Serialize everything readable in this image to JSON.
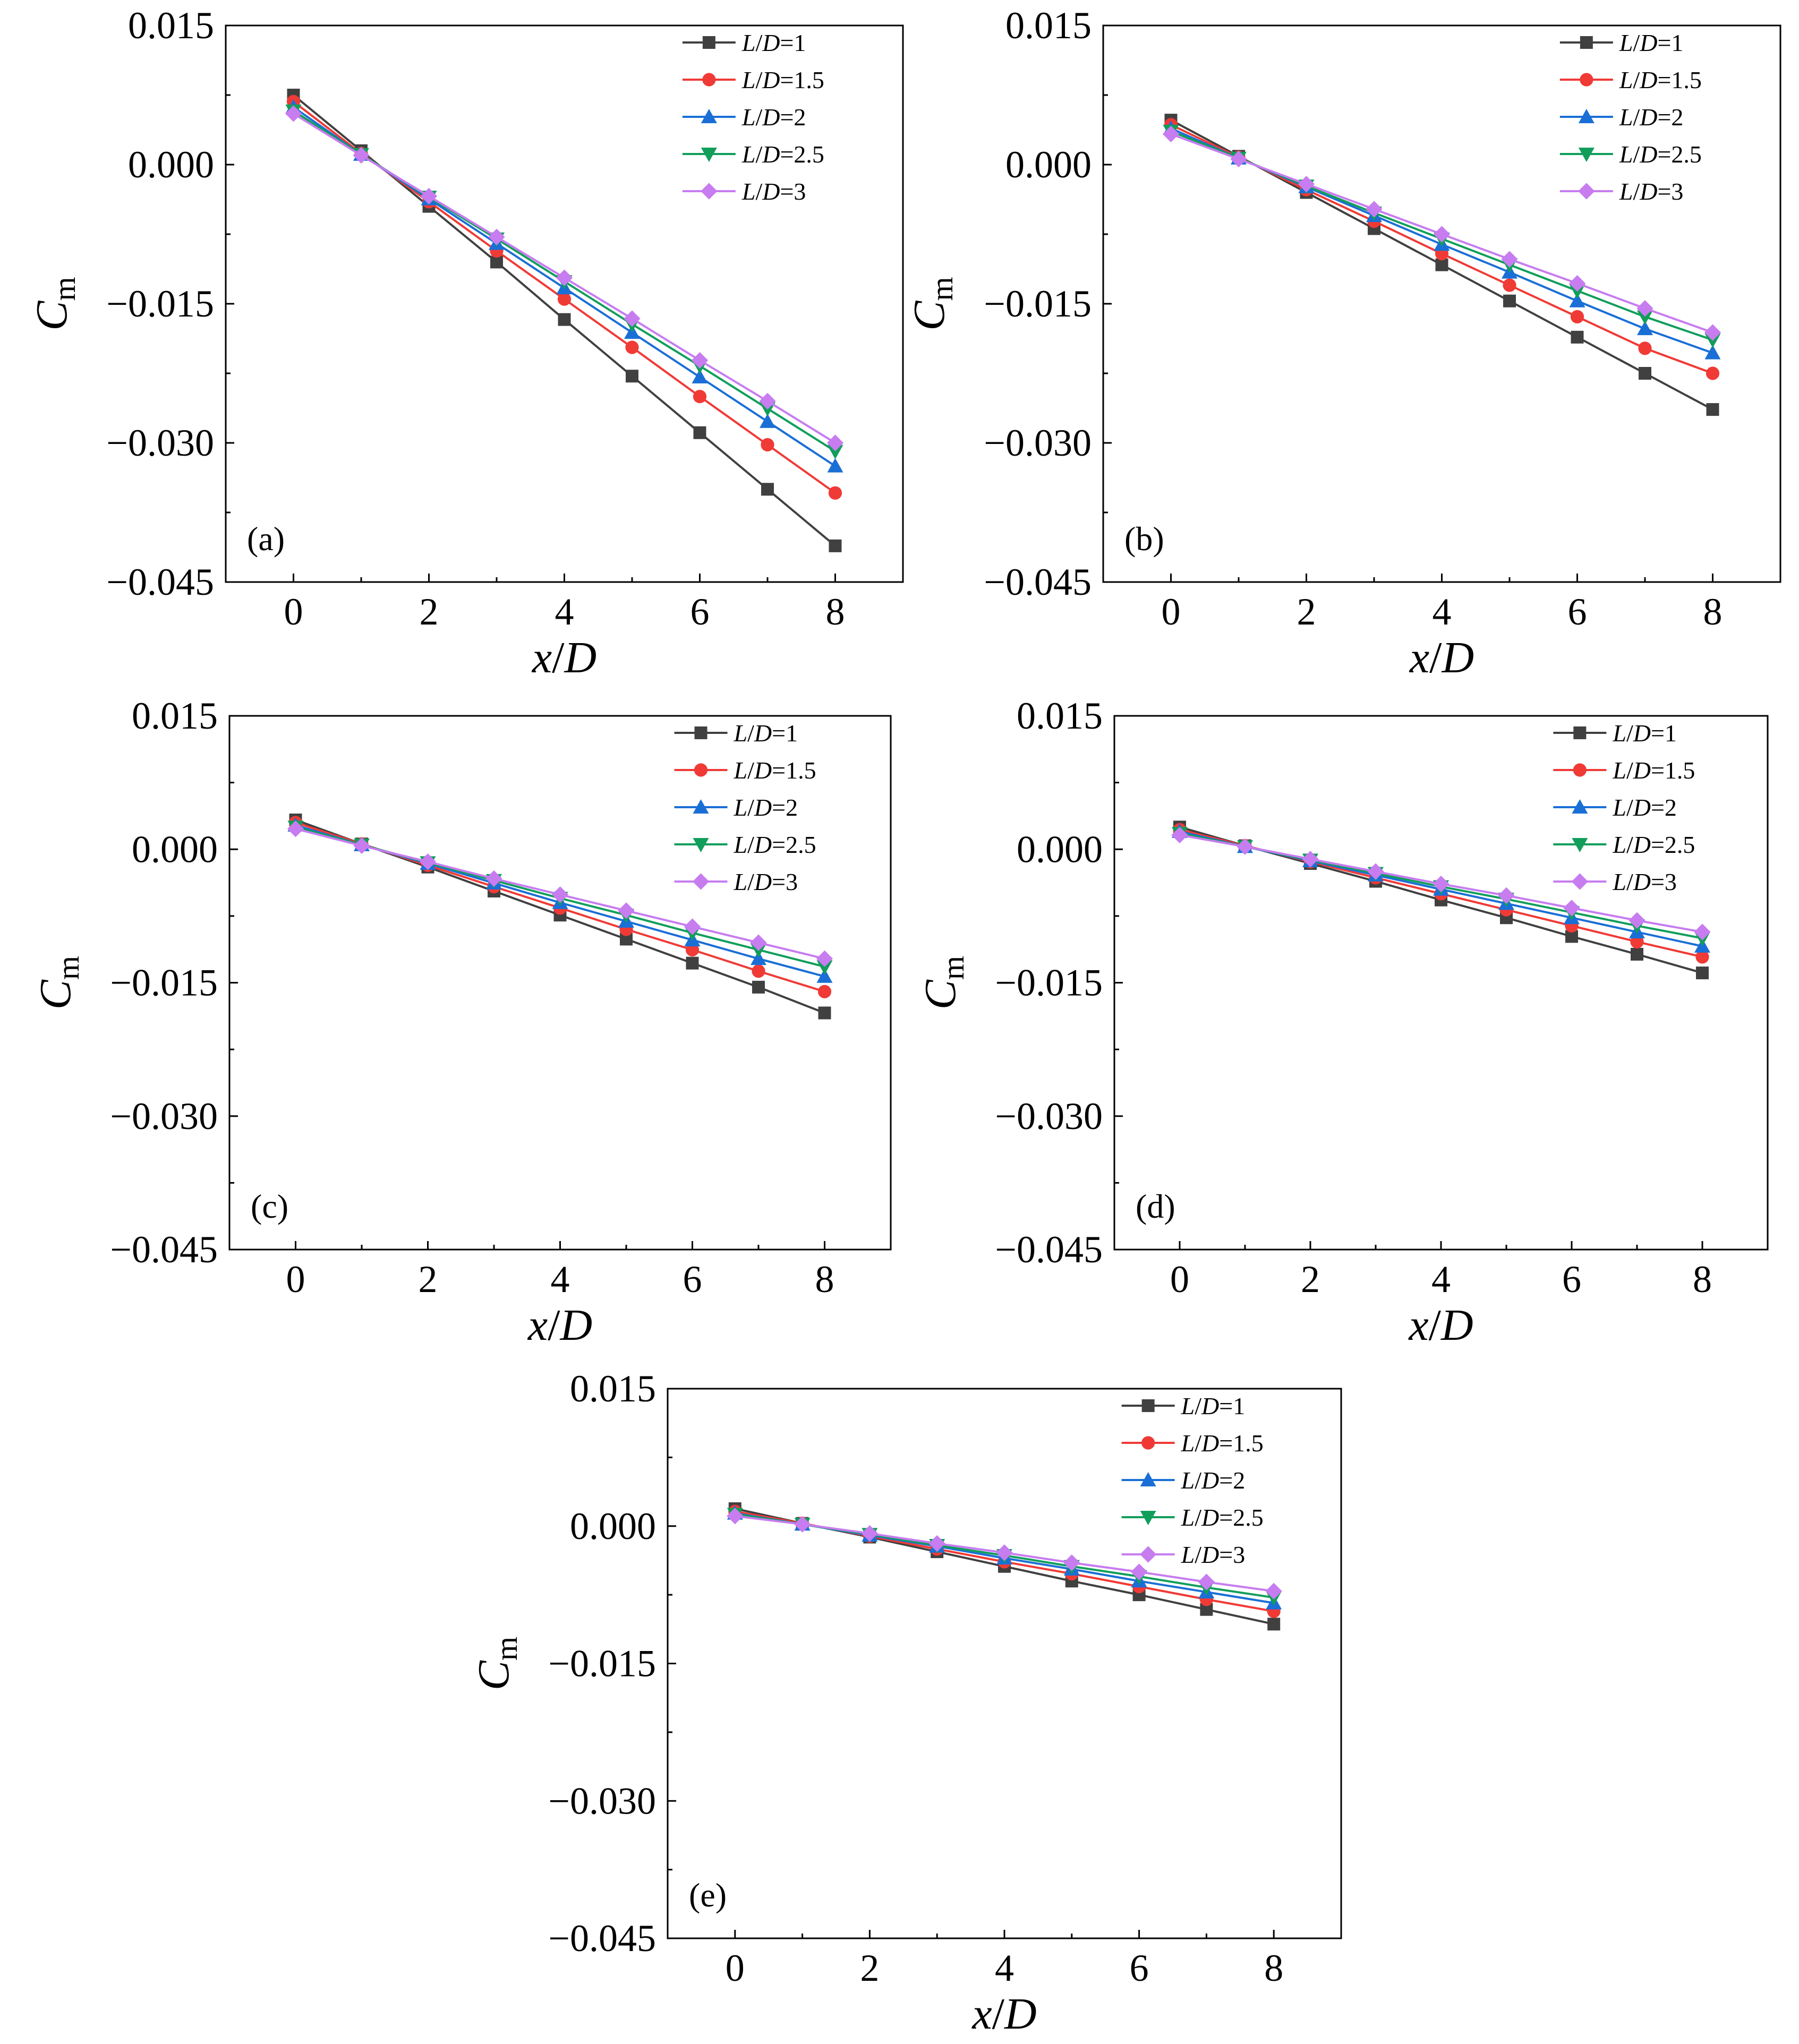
{
  "chart_data": [
    {
      "type": "line",
      "panel": "(a)",
      "xlabel": "x/D",
      "ylabel": "Cm",
      "xlim": [
        -1,
        9
      ],
      "ylim": [
        -0.045,
        0.015
      ],
      "x": [
        0,
        1,
        2,
        3,
        4,
        5,
        6,
        7,
        8
      ],
      "xticks": [
        "0",
        "2",
        "4",
        "6",
        "8"
      ],
      "yticks": [
        "0.015",
        "0.000",
        "−0.015",
        "−0.030",
        "−0.045"
      ],
      "legend_position": "top-right",
      "series": [
        {
          "name": "L/D=1",
          "color": "#404040",
          "marker": "square",
          "values": [
            0.0075,
            0.0015,
            -0.0045,
            -0.0105,
            -0.0167,
            -0.0228,
            -0.0289,
            -0.035,
            -0.0411
          ]
        },
        {
          "name": "L/D=1.5",
          "color": "#f03a36",
          "marker": "circle",
          "values": [
            0.0068,
            0.0012,
            -0.004,
            -0.0093,
            -0.0145,
            -0.0197,
            -0.025,
            -0.0302,
            -0.0354
          ]
        },
        {
          "name": "L/D=2",
          "color": "#1a6fd6",
          "marker": "triangle",
          "values": [
            0.0062,
            0.0011,
            -0.0037,
            -0.0085,
            -0.0133,
            -0.0181,
            -0.0229,
            -0.0277,
            -0.0325
          ]
        },
        {
          "name": "L/D=2.5",
          "color": "#119e5b",
          "marker": "triangle-down",
          "values": [
            0.0058,
            0.0011,
            -0.0035,
            -0.008,
            -0.0126,
            -0.0172,
            -0.0217,
            -0.0263,
            -0.0309
          ]
        },
        {
          "name": "L/D=3",
          "color": "#c77cf0",
          "marker": "diamond",
          "values": [
            0.0055,
            0.001,
            -0.0034,
            -0.0078,
            -0.0122,
            -0.0166,
            -0.0211,
            -0.0255,
            -0.03
          ]
        }
      ]
    },
    {
      "type": "line",
      "panel": "(b)",
      "xlabel": "x/D",
      "ylabel": "Cm",
      "xlim": [
        -1,
        9
      ],
      "ylim": [
        -0.045,
        0.015
      ],
      "x": [
        0,
        1,
        2,
        3,
        4,
        5,
        6,
        7,
        8
      ],
      "xticks": [
        "0",
        "2",
        "4",
        "6",
        "8"
      ],
      "yticks": [
        "0.015",
        "0.000",
        "−0.015",
        "−0.030",
        "−0.045"
      ],
      "legend_position": "top-right",
      "series": [
        {
          "name": "L/D=1",
          "color": "#404040",
          "marker": "square",
          "values": [
            0.0048,
            0.0009,
            -0.003,
            -0.0069,
            -0.0108,
            -0.0147,
            -0.0186,
            -0.0225,
            -0.0264
          ]
        },
        {
          "name": "L/D=1.5",
          "color": "#f03a36",
          "marker": "circle",
          "values": [
            0.0043,
            0.0008,
            -0.0027,
            -0.0061,
            -0.0096,
            -0.013,
            -0.0164,
            -0.0198,
            -0.0225
          ]
        },
        {
          "name": "L/D=2",
          "color": "#1a6fd6",
          "marker": "triangle",
          "values": [
            0.0039,
            0.0007,
            -0.0024,
            -0.0055,
            -0.0086,
            -0.0116,
            -0.0147,
            -0.0177,
            -0.0203
          ]
        },
        {
          "name": "L/D=2.5",
          "color": "#119e5b",
          "marker": "triangle-down",
          "values": [
            0.0036,
            0.0007,
            -0.0023,
            -0.0052,
            -0.008,
            -0.0108,
            -0.0136,
            -0.0164,
            -0.0189
          ]
        },
        {
          "name": "L/D=3",
          "color": "#c77cf0",
          "marker": "diamond",
          "values": [
            0.0033,
            0.0006,
            -0.0021,
            -0.0048,
            -0.0075,
            -0.0102,
            -0.0128,
            -0.0155,
            -0.0181
          ]
        }
      ]
    },
    {
      "type": "line",
      "panel": "(c)",
      "xlabel": "x/D",
      "ylabel": "Cm",
      "xlim": [
        -1,
        9
      ],
      "ylim": [
        -0.045,
        0.015
      ],
      "x": [
        0,
        1,
        2,
        3,
        4,
        5,
        6,
        7,
        8
      ],
      "xticks": [
        "0",
        "2",
        "4",
        "6",
        "8"
      ],
      "yticks": [
        "0.015",
        "0.000",
        "−0.015",
        "−0.030",
        "−0.045"
      ],
      "legend_position": "top-right",
      "series": [
        {
          "name": "L/D=1",
          "color": "#404040",
          "marker": "square",
          "values": [
            0.0033,
            0.0006,
            -0.002,
            -0.0047,
            -0.0074,
            -0.0101,
            -0.0128,
            -0.0155,
            -0.0184
          ]
        },
        {
          "name": "L/D=1.5",
          "color": "#f03a36",
          "marker": "circle",
          "values": [
            0.003,
            0.0006,
            -0.0018,
            -0.0042,
            -0.0066,
            -0.009,
            -0.0113,
            -0.0137,
            -0.016
          ]
        },
        {
          "name": "L/D=2",
          "color": "#1a6fd6",
          "marker": "triangle",
          "values": [
            0.0027,
            0.0005,
            -0.0016,
            -0.0038,
            -0.006,
            -0.0081,
            -0.0102,
            -0.0123,
            -0.0143
          ]
        },
        {
          "name": "L/D=2.5",
          "color": "#119e5b",
          "marker": "triangle-down",
          "values": [
            0.0025,
            0.0005,
            -0.0015,
            -0.0035,
            -0.0055,
            -0.0074,
            -0.0094,
            -0.0113,
            -0.0132
          ]
        },
        {
          "name": "L/D=3",
          "color": "#c77cf0",
          "marker": "diamond",
          "values": [
            0.0023,
            0.0004,
            -0.0014,
            -0.0033,
            -0.0051,
            -0.0069,
            -0.0087,
            -0.0105,
            -0.0123
          ]
        }
      ]
    },
    {
      "type": "line",
      "panel": "(d)",
      "xlabel": "x/D",
      "ylabel": "Cm",
      "xlim": [
        -1,
        9
      ],
      "ylim": [
        -0.045,
        0.015
      ],
      "x": [
        0,
        1,
        2,
        3,
        4,
        5,
        6,
        7,
        8
      ],
      "xticks": [
        "0",
        "2",
        "4",
        "6",
        "8"
      ],
      "yticks": [
        "0.015",
        "0.000",
        "−0.015",
        "−0.030",
        "−0.045"
      ],
      "legend_position": "top-right",
      "series": [
        {
          "name": "L/D=1",
          "color": "#404040",
          "marker": "square",
          "values": [
            0.0025,
            0.0004,
            -0.0016,
            -0.0036,
            -0.0057,
            -0.0077,
            -0.0098,
            -0.0118,
            -0.0139
          ]
        },
        {
          "name": "L/D=1.5",
          "color": "#f03a36",
          "marker": "circle",
          "values": [
            0.0022,
            0.0004,
            -0.0014,
            -0.0032,
            -0.005,
            -0.0068,
            -0.0086,
            -0.0104,
            -0.0121
          ]
        },
        {
          "name": "L/D=2",
          "color": "#1a6fd6",
          "marker": "triangle",
          "values": [
            0.002,
            0.0003,
            -0.0013,
            -0.0029,
            -0.0045,
            -0.0061,
            -0.0077,
            -0.0093,
            -0.0109
          ]
        },
        {
          "name": "L/D=2.5",
          "color": "#119e5b",
          "marker": "triangle-down",
          "values": [
            0.0018,
            0.0003,
            -0.0012,
            -0.0027,
            -0.0042,
            -0.0056,
            -0.0071,
            -0.0086,
            -0.01
          ]
        },
        {
          "name": "L/D=3",
          "color": "#c77cf0",
          "marker": "diamond",
          "values": [
            0.0016,
            0.0003,
            -0.0011,
            -0.0025,
            -0.0039,
            -0.0052,
            -0.0066,
            -0.008,
            -0.0093
          ]
        }
      ]
    },
    {
      "type": "line",
      "panel": "(e)",
      "xlabel": "x/D",
      "ylabel": "Cm",
      "xlim": [
        -1,
        9
      ],
      "ylim": [
        -0.045,
        0.015
      ],
      "x": [
        0,
        1,
        2,
        3,
        4,
        5,
        6,
        7,
        8
      ],
      "xticks": [
        "0",
        "2",
        "4",
        "6",
        "8"
      ],
      "yticks": [
        "0.015",
        "0.000",
        "−0.015",
        "−0.030",
        "−0.045"
      ],
      "legend_position": "top-right",
      "series": [
        {
          "name": "L/D=1",
          "color": "#404040",
          "marker": "square",
          "values": [
            0.0019,
            0.0003,
            -0.0012,
            -0.0028,
            -0.0044,
            -0.006,
            -0.0075,
            -0.0091,
            -0.0107
          ]
        },
        {
          "name": "L/D=1.5",
          "color": "#f03a36",
          "marker": "circle",
          "values": [
            0.0016,
            0.0003,
            -0.0011,
            -0.0025,
            -0.0039,
            -0.0052,
            -0.0066,
            -0.008,
            -0.0093
          ]
        },
        {
          "name": "L/D=2",
          "color": "#1a6fd6",
          "marker": "triangle",
          "values": [
            0.0014,
            0.0002,
            -0.001,
            -0.0022,
            -0.0035,
            -0.0047,
            -0.006,
            -0.0072,
            -0.0084
          ]
        },
        {
          "name": "L/D=2.5",
          "color": "#119e5b",
          "marker": "triangle-down",
          "values": [
            0.0013,
            0.0002,
            -0.0009,
            -0.0021,
            -0.0032,
            -0.0044,
            -0.0055,
            -0.0067,
            -0.0078
          ]
        },
        {
          "name": "L/D=3",
          "color": "#c77cf0",
          "marker": "diamond",
          "values": [
            0.0011,
            0.0002,
            -0.0008,
            -0.0019,
            -0.0029,
            -0.004,
            -0.005,
            -0.0061,
            -0.0071
          ]
        }
      ]
    }
  ]
}
